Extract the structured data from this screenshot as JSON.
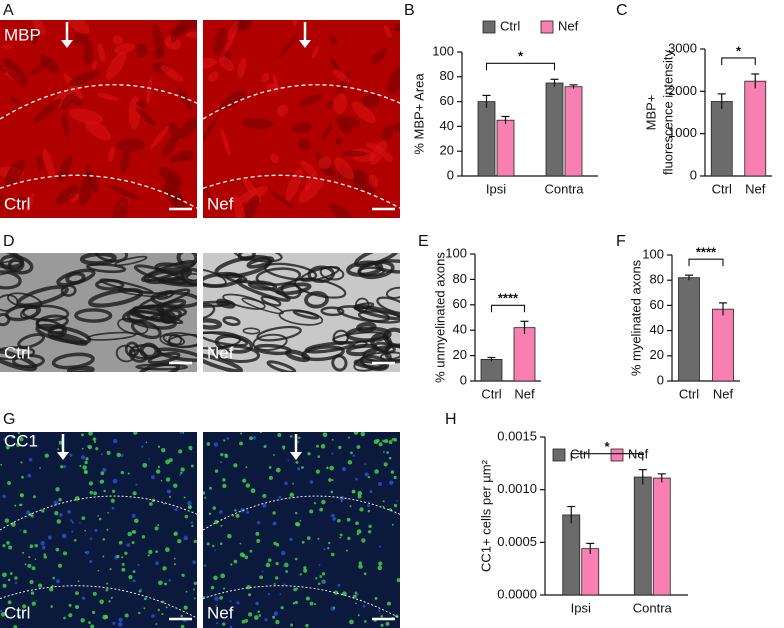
{
  "figure_labels": [
    "A",
    "B",
    "C",
    "D",
    "E",
    "F",
    "G",
    "H"
  ],
  "image_labels": [
    "MBP",
    "Ctrl",
    "Nef",
    "Ctrl",
    "Nef",
    "CC1",
    "Ctrl",
    "Nef"
  ],
  "chart_data": [
    {
      "type": "bar",
      "ylabel": "% MBP+ Area",
      "categories": [
        "Ipsi",
        "Contra"
      ],
      "series": [
        {
          "name": "Ctrl",
          "color": "#6b6b6b",
          "values": [
            60,
            75
          ],
          "errors": [
            5,
            3
          ]
        },
        {
          "name": "Nef",
          "color": "#f780b0",
          "values": [
            45,
            72
          ],
          "errors": [
            3,
            1.5
          ]
        }
      ],
      "ylim": [
        0,
        100
      ],
      "yticks": [
        0,
        20,
        40,
        60,
        80,
        100
      ],
      "significance": "*"
    },
    {
      "type": "bar",
      "ylabel": [
        "MBP+",
        "fluorescence intensity"
      ],
      "categories": [
        "Ctrl",
        "Nef"
      ],
      "colors": [
        "#6b6b6b",
        "#f780b0"
      ],
      "values": [
        1760,
        2240
      ],
      "errors": [
        180,
        170
      ],
      "ylim": [
        0,
        3000
      ],
      "yticks": [
        0,
        1000,
        2000,
        3000
      ],
      "significance": "*"
    },
    {
      "type": "bar",
      "ylabel": "% unmyelinated axons",
      "categories": [
        "Ctrl",
        "Nef"
      ],
      "colors": [
        "#6b6b6b",
        "#f780b0"
      ],
      "values": [
        17,
        42
      ],
      "errors": [
        1.5,
        5
      ],
      "ylim": [
        0,
        100
      ],
      "yticks": [
        0,
        20,
        40,
        60,
        80,
        100
      ],
      "significance": "****"
    },
    {
      "type": "bar",
      "ylabel": "% myelinated axons",
      "categories": [
        "Ctrl",
        "Nef"
      ],
      "colors": [
        "#6b6b6b",
        "#f780b0"
      ],
      "values": [
        82,
        57
      ],
      "errors": [
        2,
        5
      ],
      "ylim": [
        0,
        100
      ],
      "yticks": [
        0,
        20,
        40,
        60,
        80,
        100
      ],
      "significance": "****"
    },
    {
      "type": "bar",
      "ylabel": "CC1+ cells per µm²",
      "categories": [
        "Ipsi",
        "Contra"
      ],
      "series": [
        {
          "name": "Ctrl",
          "color": "#6b6b6b",
          "values": [
            0.00076,
            0.00112
          ],
          "errors": [
            8e-05,
            7e-05
          ]
        },
        {
          "name": "Nef",
          "color": "#f780b0",
          "values": [
            0.00044,
            0.00111
          ],
          "errors": [
            5e-05,
            4e-05
          ]
        }
      ],
      "ylim": [
        0,
        0.0015
      ],
      "yticks": [
        {
          "value": 0,
          "label": "0.0000"
        },
        {
          "value": 0.0005,
          "label": "0.0005"
        },
        {
          "value": 0.001,
          "label": "0.0010"
        },
        {
          "value": 0.0015,
          "label": "0.0015"
        }
      ],
      "significance": "*"
    }
  ]
}
